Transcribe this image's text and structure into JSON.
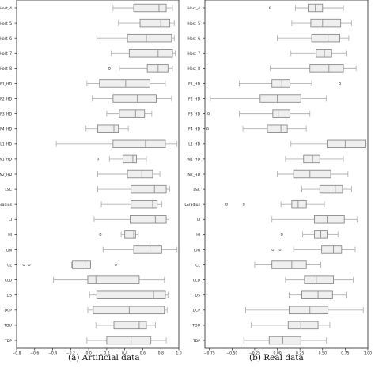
{
  "chart_data": [
    {
      "type": "box",
      "caption": "(a) Artificial data",
      "orientation": "horizontal",
      "xlim": [
        -0.8,
        1.0
      ],
      "xticks": [
        -0.8,
        -0.6,
        -0.4,
        -0.2,
        0.0,
        0.2,
        0.4,
        0.6,
        0.8,
        1.0
      ],
      "xtick_labels": [
        "−0.8",
        "−0.6",
        "−0.4",
        "−0.2",
        "0.0",
        "0.2",
        "0.4",
        "0.6",
        "0.8",
        "1.0"
      ],
      "categories": [
        "Host_4",
        "Host_5",
        "Host_6",
        "Host_7",
        "Host_8",
        "F1_HD",
        "F2_HD",
        "F3_HD",
        "F4_HD",
        "L1_HD",
        "N1_HD",
        "N2_HD",
        "LSC",
        "LSradius",
        "LI",
        "HI",
        "IDN",
        "CL",
        "CLD",
        "DS",
        "DCP",
        "TDU",
        "TDP"
      ],
      "boxes": [
        {
          "whislo": 0.27,
          "q1": 0.5,
          "med": 0.78,
          "q3": 0.86,
          "whishi": 0.93,
          "fliers": []
        },
        {
          "whislo": 0.33,
          "q1": 0.57,
          "med": 0.8,
          "q3": 0.9,
          "whishi": 0.95,
          "fliers": []
        },
        {
          "whislo": 0.09,
          "q1": 0.43,
          "med": 0.64,
          "q3": 0.92,
          "whishi": 0.95,
          "fliers": []
        },
        {
          "whislo": 0.25,
          "q1": 0.45,
          "med": 0.77,
          "q3": 0.93,
          "whishi": 0.96,
          "fliers": []
        },
        {
          "whislo": 0.34,
          "q1": 0.65,
          "med": 0.77,
          "q3": 0.88,
          "whishi": 0.93,
          "fliers": [
            0.23
          ]
        },
        {
          "whislo": -0.02,
          "q1": 0.12,
          "med": 0.41,
          "q3": 0.68,
          "whishi": 0.85,
          "fliers": []
        },
        {
          "whislo": 0.04,
          "q1": 0.27,
          "med": 0.54,
          "q3": 0.75,
          "whishi": 0.92,
          "fliers": []
        },
        {
          "whislo": 0.2,
          "q1": 0.34,
          "med": 0.52,
          "q3": 0.62,
          "whishi": 0.7,
          "fliers": []
        },
        {
          "whislo": -0.03,
          "q1": 0.1,
          "med": 0.28,
          "q3": 0.33,
          "whishi": 0.44,
          "fliers": []
        },
        {
          "whislo": -0.36,
          "q1": 0.27,
          "med": 0.63,
          "q3": 0.85,
          "whishi": 0.98,
          "fliers": []
        },
        {
          "whislo": 0.23,
          "q1": 0.38,
          "med": 0.49,
          "q3": 0.53,
          "whishi": 0.64,
          "fliers": [
            0.1
          ]
        },
        {
          "whislo": 0.1,
          "q1": 0.43,
          "med": 0.59,
          "q3": 0.71,
          "whishi": 0.79,
          "fliers": []
        },
        {
          "whislo": 0.1,
          "q1": 0.47,
          "med": 0.73,
          "q3": 0.86,
          "whishi": 0.9,
          "fliers": []
        },
        {
          "whislo": 0.14,
          "q1": 0.47,
          "med": 0.71,
          "q3": 0.76,
          "whishi": 0.81,
          "fliers": []
        },
        {
          "whislo": 0.06,
          "q1": 0.46,
          "med": 0.74,
          "q3": 0.86,
          "whishi": 0.89,
          "fliers": []
        },
        {
          "whislo": 0.36,
          "q1": 0.4,
          "med": 0.5,
          "q3": 0.52,
          "whishi": 0.55,
          "fliers": [
            0.13
          ]
        },
        {
          "whislo": 0.16,
          "q1": 0.5,
          "med": 0.68,
          "q3": 0.81,
          "whishi": 0.98,
          "fliers": []
        },
        {
          "whislo": -0.19,
          "q1": -0.18,
          "med": -0.04,
          "q3": 0.02,
          "whishi": 0.02,
          "fliers": [
            -0.72,
            -0.66,
            0.3
          ]
        },
        {
          "whislo": -0.39,
          "q1": -0.01,
          "med": 0.08,
          "q3": 0.56,
          "whishi": 0.84,
          "fliers": []
        },
        {
          "whislo": 0.01,
          "q1": 0.09,
          "med": 0.72,
          "q3": 0.85,
          "whishi": 0.88,
          "fliers": []
        },
        {
          "whislo": -0.01,
          "q1": 0.05,
          "med": 0.45,
          "q3": 0.84,
          "whishi": 0.87,
          "fliers": []
        },
        {
          "whislo": 0.08,
          "q1": 0.28,
          "med": 0.56,
          "q3": 0.64,
          "whishi": 0.74,
          "fliers": []
        },
        {
          "whislo": -0.02,
          "q1": 0.2,
          "med": 0.47,
          "q3": 0.69,
          "whishi": 0.86,
          "fliers": []
        }
      ]
    },
    {
      "type": "box",
      "caption": "(b) Real data",
      "orientation": "horizontal",
      "xlim": [
        -0.8,
        1.0
      ],
      "xticks": [
        -0.75,
        -0.5,
        -0.25,
        0.0,
        0.25,
        0.5,
        0.75,
        1.0
      ],
      "xtick_labels": [
        "−0.75",
        "−0.50",
        "−0.25",
        "0.00",
        "0.25",
        "0.50",
        "0.75",
        "1.00"
      ],
      "categories": [
        "Host_4",
        "Host_5",
        "Host_6",
        "Host_7",
        "Host_8",
        "F1_HD",
        "F2_HD",
        "F3_HD",
        "F4_HD",
        "L1_HD",
        "N1_HD",
        "N2_HD",
        "LSC",
        "LSradius",
        "LI",
        "HI",
        "IDN",
        "CL",
        "CLD",
        "DS",
        "DCP",
        "TDU",
        "TDP"
      ],
      "boxes": [
        {
          "whislo": 0.2,
          "q1": 0.34,
          "med": 0.42,
          "q3": 0.5,
          "whishi": 0.73,
          "fliers": [
            -0.08
          ]
        },
        {
          "whislo": 0.16,
          "q1": 0.37,
          "med": 0.5,
          "q3": 0.7,
          "whishi": 0.82,
          "fliers": []
        },
        {
          "whislo": 0.0,
          "q1": 0.38,
          "med": 0.56,
          "q3": 0.69,
          "whishi": 0.79,
          "fliers": []
        },
        {
          "whislo": 0.15,
          "q1": 0.43,
          "med": 0.52,
          "q3": 0.6,
          "whishi": 0.76,
          "fliers": []
        },
        {
          "whislo": -0.08,
          "q1": 0.36,
          "med": 0.57,
          "q3": 0.73,
          "whishi": 0.87,
          "fliers": []
        },
        {
          "whislo": -0.42,
          "q1": -0.06,
          "med": 0.05,
          "q3": 0.14,
          "whishi": 0.38,
          "fliers": [
            0.69
          ]
        },
        {
          "whislo": -0.74,
          "q1": -0.19,
          "med": 0.0,
          "q3": 0.26,
          "whishi": 0.54,
          "fliers": []
        },
        {
          "whislo": -0.42,
          "q1": -0.05,
          "med": 0.01,
          "q3": 0.14,
          "whishi": 0.36,
          "fliers": [
            -0.76
          ]
        },
        {
          "whislo": -0.38,
          "q1": -0.11,
          "med": 0.04,
          "q3": 0.11,
          "whishi": 0.32,
          "fliers": [
            -0.77
          ]
        },
        {
          "whislo": 0.15,
          "q1": 0.55,
          "med": 0.75,
          "q3": 0.97,
          "whishi": 0.98,
          "fliers": []
        },
        {
          "whislo": 0.09,
          "q1": 0.29,
          "med": 0.39,
          "q3": 0.47,
          "whishi": 0.73,
          "fliers": []
        },
        {
          "whislo": 0.0,
          "q1": 0.18,
          "med": 0.36,
          "q3": 0.59,
          "whishi": 0.78,
          "fliers": []
        },
        {
          "whislo": 0.27,
          "q1": 0.47,
          "med": 0.64,
          "q3": 0.72,
          "whishi": 0.82,
          "fliers": []
        },
        {
          "whislo": 0.04,
          "q1": 0.16,
          "med": 0.23,
          "q3": 0.32,
          "whishi": 0.52,
          "fliers": [
            -0.56,
            -0.37
          ]
        },
        {
          "whislo": -0.06,
          "q1": 0.41,
          "med": 0.55,
          "q3": 0.74,
          "whishi": 0.88,
          "fliers": []
        },
        {
          "whislo": 0.28,
          "q1": 0.41,
          "med": 0.48,
          "q3": 0.55,
          "whishi": 0.67,
          "fliers": [
            0.05
          ]
        },
        {
          "whislo": 0.18,
          "q1": 0.49,
          "med": 0.62,
          "q3": 0.71,
          "whishi": 0.86,
          "fliers": [
            -0.05,
            0.03
          ]
        },
        {
          "whislo": -0.25,
          "q1": -0.06,
          "med": 0.16,
          "q3": 0.32,
          "whishi": 0.48,
          "fliers": []
        },
        {
          "whislo": 0.09,
          "q1": 0.3,
          "med": 0.43,
          "q3": 0.62,
          "whishi": 0.84,
          "fliers": []
        },
        {
          "whislo": 0.13,
          "q1": 0.27,
          "med": 0.45,
          "q3": 0.61,
          "whishi": 0.76,
          "fliers": []
        },
        {
          "whislo": -0.35,
          "q1": 0.13,
          "med": 0.36,
          "q3": 0.56,
          "whishi": 0.95,
          "fliers": []
        },
        {
          "whislo": -0.29,
          "q1": 0.12,
          "med": 0.26,
          "q3": 0.45,
          "whishi": 0.58,
          "fliers": []
        },
        {
          "whislo": -0.37,
          "q1": -0.09,
          "med": 0.06,
          "q3": 0.26,
          "whishi": 0.54,
          "fliers": []
        }
      ]
    }
  ],
  "colors": {
    "box_fill": "#efefef",
    "box_edge": "#8a8a8a",
    "whisker": "#b2b2b2",
    "median": "#999999",
    "axes": "#222222"
  }
}
